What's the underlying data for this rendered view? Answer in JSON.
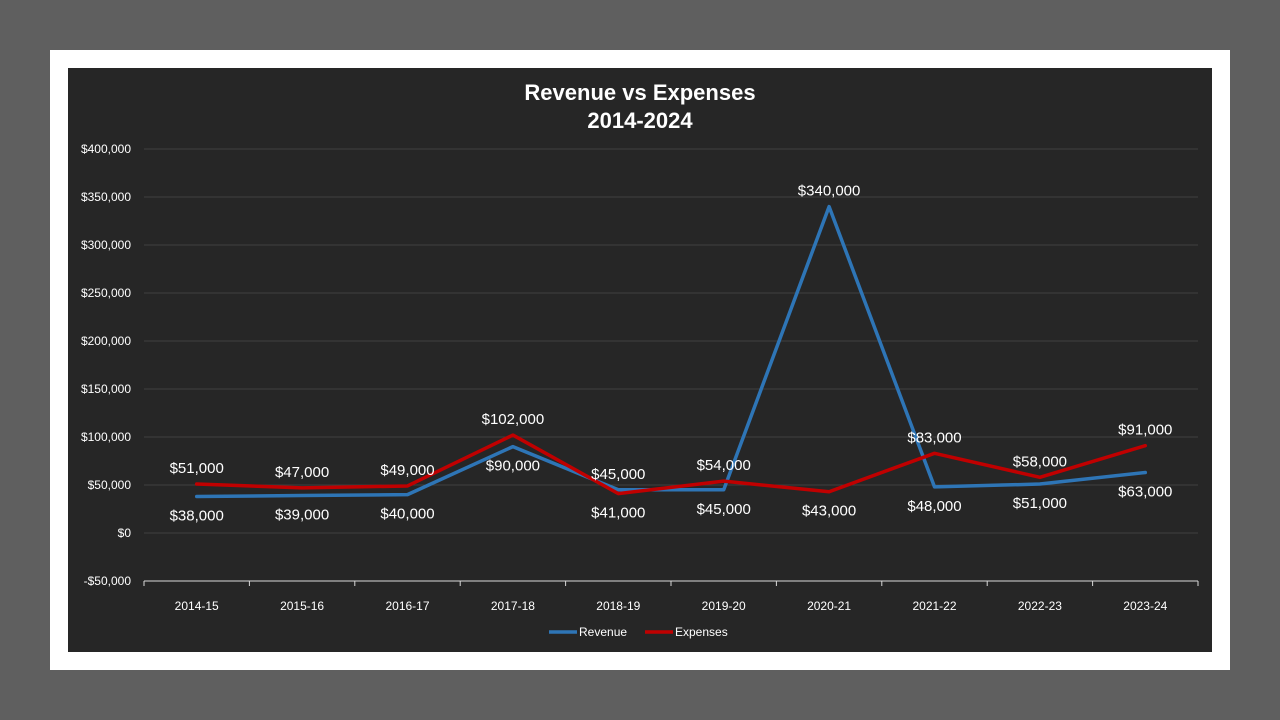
{
  "colors": {
    "background_outer": "#5f5f5f",
    "frame": "#ffffff",
    "plot_background": "#262626",
    "revenue": "#2e75b6",
    "expenses": "#c00000",
    "text": "#ffffff",
    "gridline": "#404040"
  },
  "chart_data": {
    "type": "line",
    "title": "Revenue vs Expenses",
    "subtitle": "2014-2024",
    "categories": [
      "2014-15",
      "2015-16",
      "2016-17",
      "2017-18",
      "2018-19",
      "2019-20",
      "2020-21",
      "2021-22",
      "2022-23",
      "2023-24"
    ],
    "series": [
      {
        "name": "Revenue",
        "color": "#2e75b6",
        "values": [
          38000,
          39000,
          40000,
          90000,
          45000,
          45000,
          340000,
          48000,
          51000,
          63000
        ],
        "labels": [
          "$38,000",
          "$39,000",
          "$40,000",
          "$90,000",
          "$45,000",
          "$45,000",
          "$340,000",
          "$48,000",
          "$51,000",
          "$63,000"
        ]
      },
      {
        "name": "Expenses",
        "color": "#c00000",
        "values": [
          51000,
          47000,
          49000,
          102000,
          41000,
          54000,
          43000,
          83000,
          58000,
          91000
        ],
        "labels": [
          "$51,000",
          "$47,000",
          "$49,000",
          "$102,000",
          "$41,000",
          "$54,000",
          "$43,000",
          "$83,000",
          "$58,000",
          "$91,000"
        ]
      }
    ],
    "ylim": [
      -50000,
      400000
    ],
    "yticks": [
      -50000,
      0,
      50000,
      100000,
      150000,
      200000,
      250000,
      300000,
      350000,
      400000
    ],
    "ytick_labels": [
      "-$50,000",
      "$0",
      "$50,000",
      "$100,000",
      "$150,000",
      "$200,000",
      "$250,000",
      "$300,000",
      "$350,000",
      "$400,000"
    ],
    "grid": true,
    "legend_position": "bottom"
  }
}
